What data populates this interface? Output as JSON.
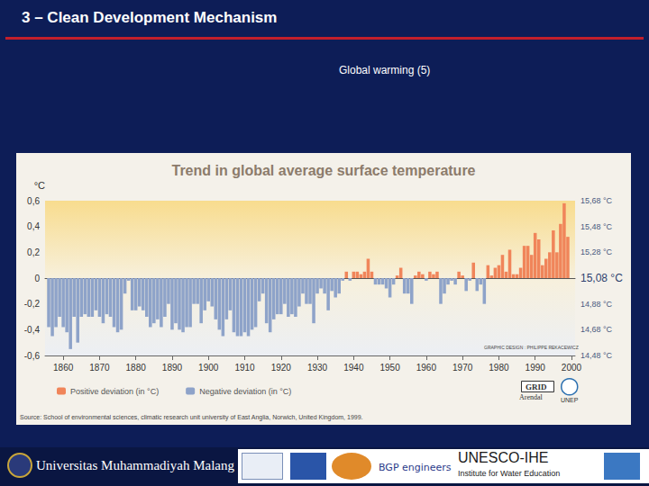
{
  "slide": {
    "title": "3 – Clean Development Mechanism",
    "subtitle": "Global warming (5)",
    "footer": [
      "Universitas Muhammadiyah Malang",
      "BGP engineers",
      "UNESCO-IHE",
      "Institute for Water Education"
    ]
  },
  "chart_data": {
    "type": "bar",
    "title": "Trend in global average surface temperature",
    "ylabel": "°C",
    "x": [
      1856,
      1857,
      1858,
      1859,
      1860,
      1861,
      1862,
      1863,
      1864,
      1865,
      1866,
      1867,
      1868,
      1869,
      1870,
      1871,
      1872,
      1873,
      1874,
      1875,
      1876,
      1877,
      1878,
      1879,
      1880,
      1881,
      1882,
      1883,
      1884,
      1885,
      1886,
      1887,
      1888,
      1889,
      1890,
      1891,
      1892,
      1893,
      1894,
      1895,
      1896,
      1897,
      1898,
      1899,
      1900,
      1901,
      1902,
      1903,
      1904,
      1905,
      1906,
      1907,
      1908,
      1909,
      1910,
      1911,
      1912,
      1913,
      1914,
      1915,
      1916,
      1917,
      1918,
      1919,
      1920,
      1921,
      1922,
      1923,
      1924,
      1925,
      1926,
      1927,
      1928,
      1929,
      1930,
      1931,
      1932,
      1933,
      1934,
      1935,
      1936,
      1937,
      1938,
      1939,
      1940,
      1941,
      1942,
      1943,
      1944,
      1945,
      1946,
      1947,
      1948,
      1949,
      1950,
      1951,
      1952,
      1953,
      1954,
      1955,
      1956,
      1957,
      1958,
      1959,
      1960,
      1961,
      1962,
      1963,
      1964,
      1965,
      1966,
      1967,
      1968,
      1969,
      1970,
      1971,
      1972,
      1973,
      1974,
      1975,
      1976,
      1977,
      1978,
      1979,
      1980,
      1981,
      1982,
      1983,
      1984,
      1985,
      1986,
      1987,
      1988,
      1989,
      1990,
      1991,
      1992,
      1993,
      1994,
      1995,
      1996,
      1997,
      1998,
      1999
    ],
    "series": [
      {
        "name": "Positive deviation (in °C)",
        "color": "#f0855a",
        "values": [
          null,
          null,
          null,
          null,
          null,
          null,
          null,
          null,
          null,
          null,
          null,
          null,
          null,
          null,
          null,
          null,
          null,
          null,
          null,
          null,
          null,
          null,
          null,
          null,
          null,
          null,
          null,
          null,
          null,
          null,
          null,
          null,
          null,
          null,
          null,
          null,
          null,
          null,
          null,
          null,
          null,
          null,
          null,
          null,
          null,
          null,
          null,
          null,
          null,
          null,
          null,
          null,
          null,
          null,
          null,
          null,
          null,
          null,
          null,
          null,
          null,
          null,
          null,
          null,
          null,
          null,
          null,
          null,
          null,
          null,
          null,
          null,
          null,
          null,
          null,
          null,
          null,
          null,
          null,
          null,
          null,
          null,
          0.05,
          null,
          0.05,
          0.05,
          0.03,
          0.05,
          0.15,
          0.05,
          null,
          null,
          null,
          null,
          null,
          null,
          0.02,
          0.08,
          null,
          null,
          null,
          0.02,
          0.05,
          0.03,
          null,
          0.05,
          0.03,
          0.05,
          null,
          null,
          null,
          null,
          null,
          0.05,
          0.02,
          null,
          null,
          0.12,
          null,
          null,
          null,
          0.1,
          0.02,
          0.08,
          0.1,
          0.18,
          0.05,
          0.22,
          0.03,
          0.03,
          0.08,
          0.25,
          0.25,
          0.18,
          0.35,
          0.3,
          0.1,
          0.15,
          0.2,
          0.37,
          0.2,
          0.42,
          0.58,
          0.32
        ]
      },
      {
        "name": "Negative deviation (in °C)",
        "color": "#8ea3c9",
        "values": [
          -0.38,
          -0.45,
          -0.38,
          -0.3,
          -0.38,
          -0.42,
          -0.55,
          -0.3,
          -0.5,
          -0.3,
          -0.28,
          -0.3,
          -0.3,
          -0.25,
          -0.3,
          -0.35,
          -0.28,
          -0.3,
          -0.38,
          -0.42,
          -0.4,
          -0.12,
          -0.02,
          -0.25,
          -0.25,
          -0.22,
          -0.25,
          -0.3,
          -0.38,
          -0.35,
          -0.32,
          -0.38,
          -0.3,
          -0.2,
          -0.4,
          -0.35,
          -0.4,
          -0.42,
          -0.38,
          -0.38,
          -0.2,
          -0.2,
          -0.35,
          -0.25,
          -0.18,
          -0.22,
          -0.32,
          -0.4,
          -0.45,
          -0.32,
          -0.25,
          -0.42,
          -0.45,
          -0.45,
          -0.42,
          -0.45,
          -0.4,
          -0.38,
          -0.18,
          -0.12,
          -0.35,
          -0.42,
          -0.32,
          -0.28,
          -0.28,
          -0.2,
          -0.3,
          -0.28,
          -0.3,
          -0.22,
          -0.12,
          -0.2,
          -0.2,
          -0.35,
          -0.12,
          -0.08,
          -0.12,
          -0.25,
          -0.1,
          -0.15,
          -0.12,
          -0.02,
          null,
          -0.02,
          null,
          null,
          null,
          null,
          null,
          null,
          -0.05,
          -0.05,
          -0.05,
          -0.08,
          -0.15,
          -0.05,
          null,
          null,
          -0.12,
          -0.12,
          -0.2,
          null,
          null,
          null,
          -0.02,
          null,
          null,
          null,
          -0.2,
          -0.12,
          -0.05,
          -0.02,
          -0.05,
          null,
          null,
          -0.1,
          -0.02,
          null,
          -0.1,
          -0.05,
          -0.2,
          null,
          null,
          null,
          null,
          null,
          null,
          null,
          null,
          null,
          null,
          null,
          null,
          null,
          null,
          null,
          null,
          null,
          null,
          null,
          null,
          null,
          null,
          null
        ]
      }
    ],
    "xlim": [
      1855,
      2001
    ],
    "xticks": [
      1860,
      1870,
      1880,
      1890,
      1900,
      1910,
      1920,
      1930,
      1940,
      1950,
      1960,
      1970,
      1980,
      1990,
      2000
    ],
    "ylim": [
      -0.6,
      0.6
    ],
    "yticks": [
      {
        "value": 0.6,
        "label": "0,6"
      },
      {
        "value": 0.4,
        "label": "0,4"
      },
      {
        "value": 0.2,
        "label": "0,2"
      },
      0,
      {
        "value": -0.2,
        "label": "-0,2"
      },
      {
        "value": -0.4,
        "label": "-0,4"
      },
      {
        "value": -0.6,
        "label": "-0,6"
      }
    ],
    "y2lim": [
      14.48,
      15.68
    ],
    "y2ticks": [
      {
        "value": 15.68,
        "label": "15,68 °C"
      },
      {
        "value": 15.48,
        "label": "15,48 °C"
      },
      {
        "value": 15.28,
        "label": "15,28 °C"
      },
      {
        "value": 15.08,
        "label": "15,08 °C"
      },
      {
        "value": 14.88,
        "label": "14,88 °C"
      },
      {
        "value": 14.68,
        "label": "14,68 °C"
      },
      {
        "value": 14.48,
        "label": "14,48 °C"
      }
    ],
    "grid": false,
    "legend": "bottom-left",
    "annotations": [
      "GRAPHIC DESIGN : PHILIPPE REKACEWICZ",
      "GRID",
      "Arendal",
      "UNEP"
    ],
    "source": "Source: School of environmental sciences, climatic research unit university of East Anglia, Norwich, United Kingdom, 1999."
  }
}
